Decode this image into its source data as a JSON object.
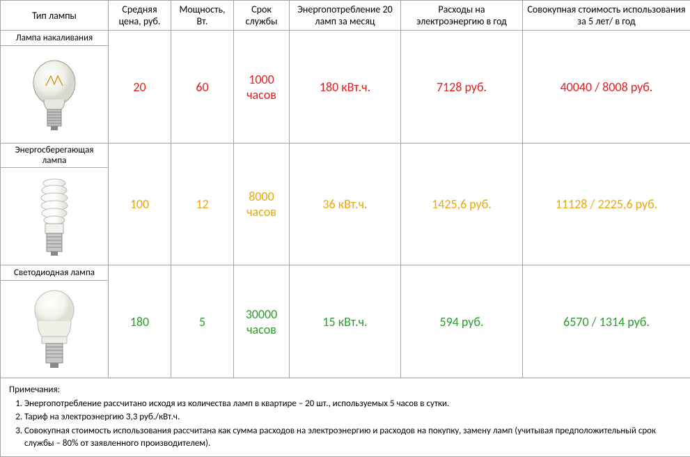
{
  "colors": {
    "red": "#e01f1f",
    "orange": "#e8a80e",
    "green": "#2e9b2e",
    "border": "#a6a6a6",
    "text": "#000000"
  },
  "headers": {
    "type": "Тип лампы",
    "price": "Средняя цена, руб.",
    "power": "Мощность, Вт.",
    "life": "Срок службы",
    "energy": "Энергопотребление 20 ламп за месяц",
    "cost_year": "Расходы на электроэнергию в год",
    "cost_5y": "Совокупная стоимость использования за 5 лет/ в год"
  },
  "rows": [
    {
      "name": "Лампа накаливания",
      "icon": "incandescent",
      "color_class": "red",
      "price": "20",
      "power": "60",
      "life": "1000 часов",
      "energy": "180 кВт.ч.",
      "cost_year": "7128 руб.",
      "cost_5y": "40040 / 8008 руб."
    },
    {
      "name": "Энергосберегающая лампа",
      "icon": "cfl",
      "color_class": "orange",
      "price": "100",
      "power": "12",
      "life": "8000 часов",
      "energy": "36 кВт.ч.",
      "cost_year": "1425,6 руб.",
      "cost_5y": "11128 / 2225,6 руб."
    },
    {
      "name": "Светодиодная лампа",
      "icon": "led",
      "color_class": "green",
      "price": "180",
      "power": "5",
      "life": "30000 часов",
      "energy": "15 кВт.ч.",
      "cost_year": "594 руб.",
      "cost_5y": "6570 / 1314 руб."
    }
  ],
  "notes": {
    "title": "Примечания:",
    "items": [
      "Энергопотребление рассчитано исходя из количества ламп в квартире – 20 шт., используемых 5 часов в сутки.",
      "Тариф на электроэнергию 3,3 руб./кВт.ч.",
      "Совокупная стоимость использования рассчитана как сумма расходов на электроэнергию и расходов на покупку, замену ламп (учитывая предположительный срок службы – 80% от заявленного производителем)."
    ]
  }
}
